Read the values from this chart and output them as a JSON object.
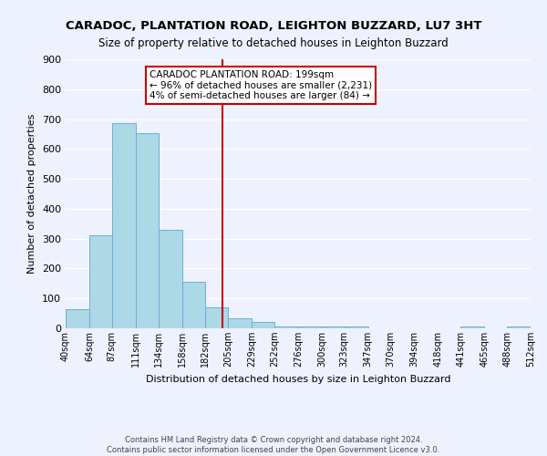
{
  "title": "CARADOC, PLANTATION ROAD, LEIGHTON BUZZARD, LU7 3HT",
  "subtitle": "Size of property relative to detached houses in Leighton Buzzard",
  "xlabel": "Distribution of detached houses by size in Leighton Buzzard",
  "ylabel": "Number of detached properties",
  "footer_line1": "Contains HM Land Registry data © Crown copyright and database right 2024.",
  "footer_line2": "Contains public sector information licensed under the Open Government Licence v3.0.",
  "bin_edges": [
    40,
    64,
    87,
    111,
    134,
    158,
    182,
    205,
    229,
    252,
    276,
    300,
    323,
    347,
    370,
    394,
    418,
    441,
    465,
    488,
    512
  ],
  "bin_labels": [
    "40sqm",
    "64sqm",
    "87sqm",
    "111sqm",
    "134sqm",
    "158sqm",
    "182sqm",
    "205sqm",
    "229sqm",
    "252sqm",
    "276sqm",
    "300sqm",
    "323sqm",
    "347sqm",
    "370sqm",
    "394sqm",
    "418sqm",
    "441sqm",
    "465sqm",
    "488sqm",
    "512sqm"
  ],
  "counts": [
    65,
    310,
    685,
    653,
    330,
    155,
    70,
    35,
    20,
    5,
    5,
    5,
    5,
    0,
    0,
    0,
    0,
    5,
    0,
    5
  ],
  "bar_color": "#add8e6",
  "bar_edge_color": "#6baed6",
  "vline_x": 199,
  "vline_color": "#cc0000",
  "annotation_title": "CARADOC PLANTATION ROAD: 199sqm",
  "annotation_line1": "← 96% of detached houses are smaller (2,231)",
  "annotation_line2": "4% of semi-detached houses are larger (84) →",
  "annotation_box_color": "#ffffff",
  "annotation_border_color": "#cc0000",
  "ylim": [
    0,
    900
  ],
  "yticks": [
    0,
    100,
    200,
    300,
    400,
    500,
    600,
    700,
    800,
    900
  ],
  "background_color": "#eef2ff",
  "title_fontsize": 9.5,
  "subtitle_fontsize": 8.5
}
